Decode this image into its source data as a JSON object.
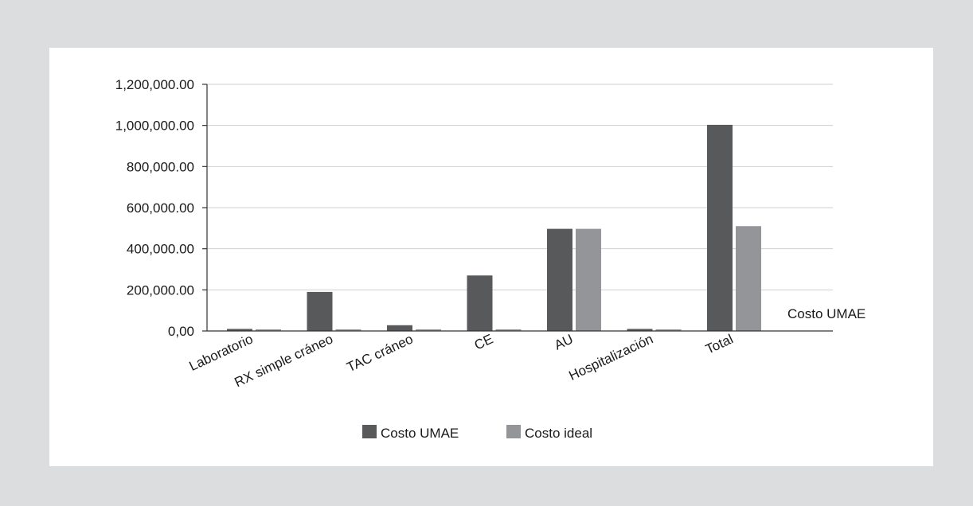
{
  "chart_data": {
    "type": "bar",
    "categories": [
      "Laboratorio",
      "RX simple cráneo",
      "TAC cráneo",
      "CE",
      "AU",
      "Hospitalización",
      "Total"
    ],
    "series": [
      {
        "name": "Costo UMAE",
        "color": "#58595b",
        "values": [
          10000,
          190000,
          28000,
          270000,
          497000,
          10000,
          1003000
        ]
      },
      {
        "name": "Costo ideal",
        "color": "#939598",
        "values": [
          8000,
          8000,
          8000,
          8000,
          497000,
          8000,
          510000
        ]
      }
    ],
    "yticks": [
      "0,00",
      "200,000.00",
      "400,000.00",
      "600,000.00",
      "800,000.00",
      "1,000,000.00",
      "1,200,000.00"
    ],
    "ytick_values": [
      0,
      200000,
      400000,
      600000,
      800000,
      1000000,
      1200000
    ],
    "ylim": [
      0,
      1200000
    ],
    "grid": true,
    "legend_position": "bottom",
    "annotation": "Costo UMAE"
  }
}
